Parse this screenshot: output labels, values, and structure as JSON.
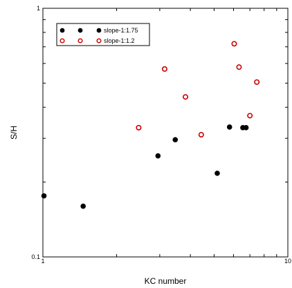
{
  "chart_data": {
    "type": "scatter",
    "title": "",
    "xlabel": "KC number",
    "ylabel": "S/H",
    "x_scale": "log",
    "y_scale": "log",
    "xlim": [
      1,
      10
    ],
    "ylim": [
      0.1,
      1
    ],
    "x_tick_labels": [
      "1",
      "10"
    ],
    "y_tick_labels": [
      "0.1",
      "1"
    ],
    "grid": false,
    "legend_position": "top-left",
    "series": [
      {
        "name": "slope-1:1.75",
        "marker": "filled-circle",
        "color": "#000000",
        "points": [
          {
            "x": 1.01,
            "y": 0.176
          },
          {
            "x": 1.46,
            "y": 0.16
          },
          {
            "x": 2.95,
            "y": 0.255
          },
          {
            "x": 3.47,
            "y": 0.296
          },
          {
            "x": 5.15,
            "y": 0.217
          },
          {
            "x": 5.78,
            "y": 0.333
          },
          {
            "x": 6.55,
            "y": 0.331
          },
          {
            "x": 6.75,
            "y": 0.331
          }
        ]
      },
      {
        "name": "slope-1:1.2",
        "marker": "open-circle",
        "color": "#cc0000",
        "points": [
          {
            "x": 2.46,
            "y": 0.331
          },
          {
            "x": 3.14,
            "y": 0.57
          },
          {
            "x": 3.82,
            "y": 0.44
          },
          {
            "x": 4.43,
            "y": 0.31
          },
          {
            "x": 6.04,
            "y": 0.72
          },
          {
            "x": 6.32,
            "y": 0.58
          },
          {
            "x": 7.0,
            "y": 0.37
          },
          {
            "x": 7.47,
            "y": 0.505
          }
        ]
      }
    ]
  }
}
